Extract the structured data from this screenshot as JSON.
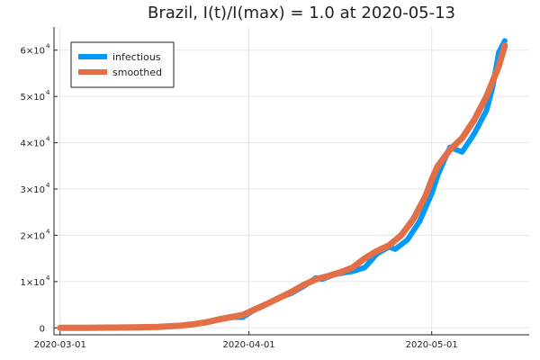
{
  "chart_data": {
    "type": "line",
    "title": "Brazil,  I(t)/I(max) = 1.0 at 2020-05-13",
    "xlabel": "",
    "ylabel": "",
    "x_ticks": [
      "2020-03-01",
      "2020-04-01",
      "2020-05-01"
    ],
    "y_ticks": [
      {
        "value": 0,
        "mantissa": "0",
        "exponent": ""
      },
      {
        "value": 10000,
        "mantissa": "1×10",
        "exponent": "4"
      },
      {
        "value": 20000,
        "mantissa": "2×10",
        "exponent": "4"
      },
      {
        "value": 30000,
        "mantissa": "3×10",
        "exponent": "4"
      },
      {
        "value": 40000,
        "mantissa": "4×10",
        "exponent": "4"
      },
      {
        "value": 50000,
        "mantissa": "5×10",
        "exponent": "4"
      },
      {
        "value": 60000,
        "mantissa": "6×10",
        "exponent": "4"
      }
    ],
    "xlim": [
      "2020-02-29",
      "2020-05-17"
    ],
    "ylim": [
      -1500,
      65000
    ],
    "grid": true,
    "legend_position": "top-left",
    "series": [
      {
        "name": "infectious",
        "color": "#009AFA",
        "x": [
          "2020-03-01",
          "2020-03-05",
          "2020-03-09",
          "2020-03-13",
          "2020-03-17",
          "2020-03-21",
          "2020-03-23",
          "2020-03-25",
          "2020-03-27",
          "2020-03-29",
          "2020-03-31",
          "2020-04-02",
          "2020-04-04",
          "2020-04-06",
          "2020-04-08",
          "2020-04-10",
          "2020-04-12",
          "2020-04-13",
          "2020-04-15",
          "2020-04-17",
          "2020-04-18",
          "2020-04-20",
          "2020-04-22",
          "2020-04-24",
          "2020-04-25",
          "2020-04-27",
          "2020-04-29",
          "2020-04-30",
          "2020-05-01",
          "2020-05-02",
          "2020-05-03",
          "2020-05-04",
          "2020-05-06",
          "2020-05-08",
          "2020-05-10",
          "2020-05-11",
          "2020-05-12",
          "2020-05-13"
        ],
        "y": [
          0,
          20,
          50,
          100,
          200,
          500,
          800,
          1200,
          1800,
          2300,
          2300,
          4000,
          5200,
          6500,
          7500,
          9000,
          10800,
          10500,
          11500,
          12000,
          12200,
          13000,
          16000,
          17500,
          17000,
          19000,
          23000,
          26000,
          29000,
          33000,
          36000,
          39000,
          38000,
          42000,
          47000,
          52000,
          59500,
          62000
        ]
      },
      {
        "name": "smoothed",
        "color": "#E26F46",
        "x": [
          "2020-03-01",
          "2020-03-05",
          "2020-03-09",
          "2020-03-13",
          "2020-03-17",
          "2020-03-21",
          "2020-03-23",
          "2020-03-25",
          "2020-03-27",
          "2020-03-29",
          "2020-03-31",
          "2020-04-02",
          "2020-04-04",
          "2020-04-06",
          "2020-04-08",
          "2020-04-10",
          "2020-04-12",
          "2020-04-14",
          "2020-04-16",
          "2020-04-18",
          "2020-04-20",
          "2020-04-22",
          "2020-04-24",
          "2020-04-26",
          "2020-04-28",
          "2020-04-30",
          "2020-05-01",
          "2020-05-02",
          "2020-05-04",
          "2020-05-06",
          "2020-05-08",
          "2020-05-10",
          "2020-05-12",
          "2020-05-13"
        ],
        "y": [
          0,
          20,
          50,
          100,
          200,
          500,
          800,
          1200,
          1800,
          2300,
          2800,
          4000,
          5200,
          6500,
          7800,
          9300,
          10500,
          11200,
          12000,
          13000,
          15000,
          16600,
          17800,
          20000,
          23500,
          28500,
          32000,
          35000,
          38500,
          41000,
          45000,
          50000,
          56500,
          61000
        ]
      }
    ]
  }
}
